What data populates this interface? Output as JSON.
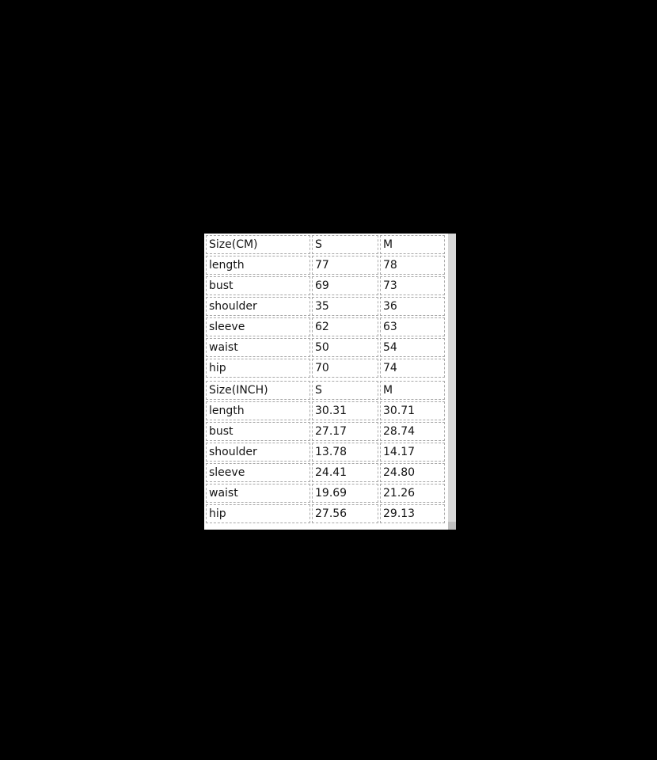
{
  "colors": {
    "page_background": "#000000",
    "panel_background": "#ffffff",
    "cell_border": "#a8a8a8",
    "text": "#141414",
    "scrollbar_track": "#d9d9d9",
    "scrollbar_thumb": "#c0c0c0"
  },
  "tables": [
    {
      "name": "size-cm",
      "rows": [
        {
          "cells": [
            "Size(CM)",
            "S",
            "M"
          ]
        },
        {
          "cells": [
            "length",
            "77",
            "78"
          ]
        },
        {
          "cells": [
            "bust",
            "69",
            "73"
          ]
        },
        {
          "cells": [
            "shoulder",
            "35",
            "36"
          ]
        },
        {
          "cells": [
            "sleeve",
            "62",
            "63"
          ]
        },
        {
          "cells": [
            "waist",
            "50",
            "54"
          ]
        },
        {
          "cells": [
            "hip",
            "70",
            "74"
          ]
        }
      ]
    },
    {
      "name": "size-inch",
      "rows": [
        {
          "cells": [
            "Size(INCH)",
            "S",
            "M"
          ]
        },
        {
          "cells": [
            "length",
            "30.31",
            "30.71"
          ]
        },
        {
          "cells": [
            "bust",
            "27.17",
            "28.74"
          ]
        },
        {
          "cells": [
            "shoulder",
            "13.78",
            "14.17"
          ]
        },
        {
          "cells": [
            "sleeve",
            "24.41",
            "24.80"
          ]
        },
        {
          "cells": [
            "waist",
            "19.69",
            "21.26"
          ]
        },
        {
          "cells": [
            "hip",
            "27.56",
            "29.13"
          ]
        }
      ]
    }
  ]
}
